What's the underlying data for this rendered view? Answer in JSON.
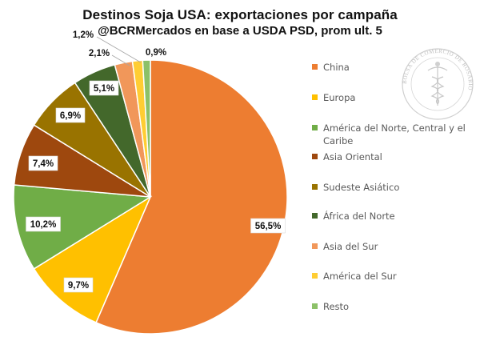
{
  "chart_data": {
    "type": "pie",
    "title": "Destinos Soja USA: exportaciones por campaña",
    "subtitle": "@BCRMercados en base a USDA PSD, prom ult. 5",
    "legend_position": "right",
    "slices": [
      {
        "name": "China",
        "value": 56.5,
        "label": "56,5%",
        "color": "#ED7D31"
      },
      {
        "name": "Europa",
        "value": 9.7,
        "label": "9,7%",
        "color": "#FFC000"
      },
      {
        "name": "América del Norte, Central y el Caribe",
        "value": 10.2,
        "label": "10,2%",
        "color": "#70AD47"
      },
      {
        "name": "Asia Oriental",
        "value": 7.4,
        "label": "7,4%",
        "color": "#9E480E"
      },
      {
        "name": "Sudeste Asiático",
        "value": 6.9,
        "label": "6,9%",
        "color": "#997300"
      },
      {
        "name": "África del Norte",
        "value": 5.1,
        "label": "5,1%",
        "color": "#43682B"
      },
      {
        "name": "Asia del Sur",
        "value": 2.1,
        "label": "2,1%",
        "color": "#F1975A"
      },
      {
        "name": "América del Sur",
        "value": 1.2,
        "label": "1,2%",
        "color": "#FFCD33"
      },
      {
        "name": "Resto",
        "value": 0.9,
        "label": "0,9%",
        "color": "#8CC168"
      }
    ]
  },
  "watermark": {
    "text": "BOLSA DE COMERCIO DE ROSARIO",
    "icon": "caduceus-seal-icon"
  }
}
